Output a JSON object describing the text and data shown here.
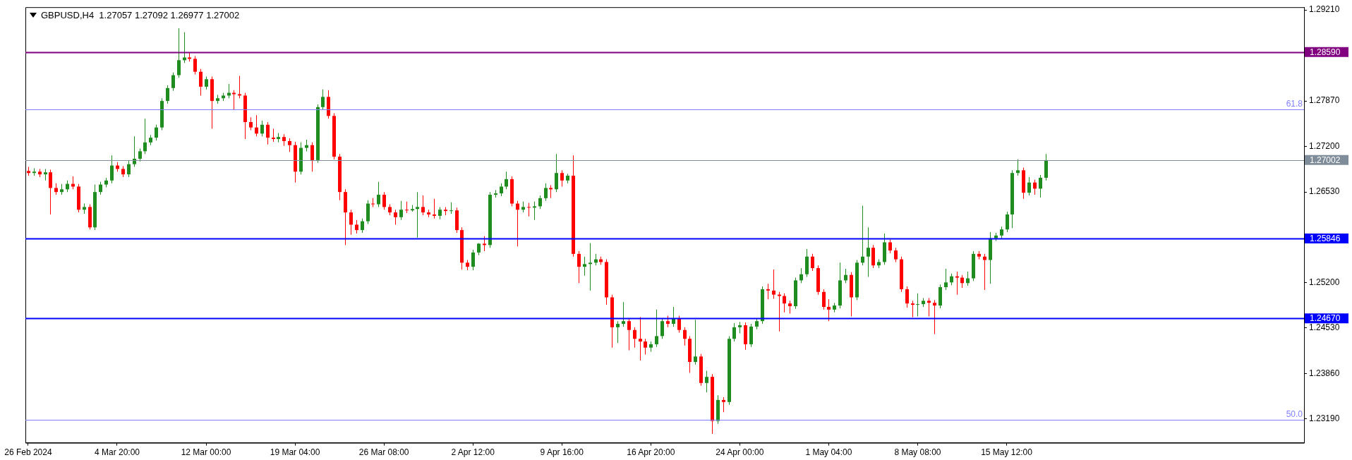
{
  "chart_data": {
    "type": "candlestick",
    "title": "GBPUSD,H4  1.27057 1.27092 1.26977 1.27002",
    "categories": [
      "26 Feb 2024",
      null,
      null,
      null,
      null,
      null,
      null,
      null,
      null,
      null,
      null,
      null,
      null,
      null,
      null,
      null,
      "4 Mar 20:00",
      null,
      null,
      null,
      null,
      null,
      null,
      null,
      null,
      null,
      null,
      null,
      null,
      null,
      null,
      null,
      "12 Mar 00:00",
      null,
      null,
      null,
      null,
      null,
      null,
      null,
      null,
      null,
      null,
      null,
      null,
      null,
      null,
      null,
      "19 Mar 04:00",
      null,
      null,
      null,
      null,
      null,
      null,
      null,
      null,
      null,
      null,
      null,
      null,
      null,
      null,
      null,
      "26 Mar 08:00",
      null,
      null,
      null,
      null,
      null,
      null,
      null,
      null,
      null,
      null,
      null,
      null,
      null,
      null,
      null,
      "2 Apr 12:00",
      null,
      null,
      null,
      null,
      null,
      null,
      null,
      null,
      null,
      null,
      null,
      null,
      null,
      null,
      null,
      "9 Apr 16:00",
      null,
      null,
      null,
      null,
      null,
      null,
      null,
      null,
      null,
      null,
      null,
      null,
      null,
      null,
      null,
      "16 Apr 20:00",
      null,
      null,
      null,
      null,
      null,
      null,
      null,
      null,
      null,
      null,
      null,
      null,
      null,
      null,
      null,
      "24 Apr 00:00",
      null,
      null,
      null,
      null,
      null,
      null,
      null,
      null,
      null,
      null,
      null,
      null,
      null,
      null,
      null,
      "1 May 04:00",
      null,
      null,
      null,
      null,
      null,
      null,
      null,
      null,
      null,
      null,
      null,
      null,
      null,
      null,
      null,
      "8 May 08:00",
      null,
      null,
      null,
      null,
      null,
      null,
      null,
      null,
      null,
      null,
      null,
      null,
      null,
      null,
      null,
      "15 May 12:00",
      null,
      null,
      null,
      null,
      null,
      null,
      null,
      null,
      null,
      null,
      null,
      null,
      null,
      null,
      null,
      null,
      null,
      null,
      null,
      null,
      null,
      null,
      null,
      null,
      null,
      null,
      null,
      null,
      null,
      null,
      null,
      null,
      null,
      null,
      null,
      null,
      null,
      null,
      null,
      null,
      null,
      null,
      null,
      null,
      null,
      null,
      null,
      null,
      null,
      null,
      null,
      null,
      null
    ],
    "ohlc": [
      [
        1.2684,
        1.269,
        1.2677,
        1.2681
      ],
      [
        1.2681,
        1.2688,
        1.2677,
        1.2683
      ],
      [
        1.2683,
        1.2687,
        1.2675,
        1.2679
      ],
      [
        1.2679,
        1.2687,
        1.267,
        1.2682
      ],
      [
        1.2682,
        1.2686,
        1.262,
        1.2659
      ],
      [
        1.2659,
        1.2666,
        1.2649,
        1.2653
      ],
      [
        1.2653,
        1.2665,
        1.2649,
        1.2657
      ],
      [
        1.2657,
        1.267,
        1.2653,
        1.2665
      ],
      [
        1.2665,
        1.2676,
        1.2657,
        1.2661
      ],
      [
        1.2661,
        1.2665,
        1.2623,
        1.2627
      ],
      [
        1.2627,
        1.2636,
        1.2621,
        1.2631
      ],
      [
        1.2631,
        1.2635,
        1.2598,
        1.2601
      ],
      [
        1.2601,
        1.2664,
        1.2597,
        1.2653
      ],
      [
        1.2653,
        1.2668,
        1.2649,
        1.2664
      ],
      [
        1.2664,
        1.2674,
        1.266,
        1.267
      ],
      [
        1.267,
        1.2707,
        1.2666,
        1.2692
      ],
      [
        1.2692,
        1.2697,
        1.2683,
        1.2687
      ],
      [
        1.2687,
        1.2691,
        1.2675,
        1.2679
      ],
      [
        1.2679,
        1.2699,
        1.2675,
        1.2694
      ],
      [
        1.2694,
        1.2735,
        1.269,
        1.2702
      ],
      [
        1.2702,
        1.2717,
        1.2698,
        1.2713
      ],
      [
        1.2713,
        1.2761,
        1.2709,
        1.2726
      ],
      [
        1.2726,
        1.2737,
        1.2722,
        1.2733
      ],
      [
        1.2733,
        1.2752,
        1.2729,
        1.2748
      ],
      [
        1.2748,
        1.2791,
        1.2744,
        1.2787
      ],
      [
        1.2787,
        1.281,
        1.2783,
        1.2806
      ],
      [
        1.2806,
        1.2829,
        1.2802,
        1.2825
      ],
      [
        1.2825,
        1.2894,
        1.2821,
        1.2847
      ],
      [
        1.2847,
        1.2888,
        1.2843,
        1.2851
      ],
      [
        1.2851,
        1.2858,
        1.2845,
        1.2849
      ],
      [
        1.2849,
        1.2853,
        1.2826,
        1.283
      ],
      [
        1.283,
        1.2834,
        1.2795,
        1.2808
      ],
      [
        1.2808,
        1.2823,
        1.2804,
        1.2819
      ],
      [
        1.2819,
        1.2823,
        1.2746,
        1.2787
      ],
      [
        1.2787,
        1.2796,
        1.2783,
        1.2791
      ],
      [
        1.2791,
        1.2799,
        1.2787,
        1.2795
      ],
      [
        1.2795,
        1.2812,
        1.2791,
        1.2799
      ],
      [
        1.2799,
        1.2803,
        1.2774,
        1.2797
      ],
      [
        1.2797,
        1.2824,
        1.2791,
        1.2795
      ],
      [
        1.2795,
        1.2799,
        1.2731,
        1.2756
      ],
      [
        1.2756,
        1.2763,
        1.2744,
        1.2748
      ],
      [
        1.2748,
        1.2766,
        1.2735,
        1.2739
      ],
      [
        1.2739,
        1.2758,
        1.2735,
        1.2752
      ],
      [
        1.2752,
        1.2756,
        1.2723,
        1.2733
      ],
      [
        1.2733,
        1.2746,
        1.2727,
        1.2731
      ],
      [
        1.2731,
        1.274,
        1.2726,
        1.2734
      ],
      [
        1.2734,
        1.2738,
        1.2721,
        1.2728
      ],
      [
        1.2728,
        1.2732,
        1.2712,
        1.2722
      ],
      [
        1.2722,
        1.2727,
        1.2667,
        1.2683
      ],
      [
        1.2683,
        1.2726,
        1.2679,
        1.2718
      ],
      [
        1.2718,
        1.273,
        1.2713,
        1.2722
      ],
      [
        1.2722,
        1.2726,
        1.2683,
        1.27
      ],
      [
        1.27,
        1.2782,
        1.2696,
        1.2778
      ],
      [
        1.2778,
        1.2804,
        1.2774,
        1.2793
      ],
      [
        1.2793,
        1.2803,
        1.2761,
        1.2765
      ],
      [
        1.2765,
        1.2769,
        1.2701,
        1.2705
      ],
      [
        1.2705,
        1.2709,
        1.2641,
        1.2653
      ],
      [
        1.2653,
        1.2657,
        1.2575,
        1.2623
      ],
      [
        1.2623,
        1.2627,
        1.259,
        1.2605
      ],
      [
        1.2605,
        1.2612,
        1.2592,
        1.2597
      ],
      [
        1.2597,
        1.2614,
        1.2593,
        1.261
      ],
      [
        1.261,
        1.2641,
        1.2606,
        1.2636
      ],
      [
        1.2636,
        1.2644,
        1.2631,
        1.2635
      ],
      [
        1.2635,
        1.2668,
        1.2631,
        1.2649
      ],
      [
        1.2649,
        1.2653,
        1.2627,
        1.2631
      ],
      [
        1.2631,
        1.2635,
        1.2619,
        1.2623
      ],
      [
        1.2623,
        1.2627,
        1.2605,
        1.2616
      ],
      [
        1.2616,
        1.264,
        1.2612,
        1.2627
      ],
      [
        1.2627,
        1.2639,
        1.2622,
        1.2626
      ],
      [
        1.2626,
        1.2634,
        1.2624,
        1.2628
      ],
      [
        1.2628,
        1.2653,
        1.2586,
        1.2631
      ],
      [
        1.2631,
        1.2648,
        1.2619,
        1.2623
      ],
      [
        1.2623,
        1.2627,
        1.2616,
        1.262
      ],
      [
        1.262,
        1.2643,
        1.2614,
        1.2618
      ],
      [
        1.2618,
        1.2631,
        1.2613,
        1.2627
      ],
      [
        1.2627,
        1.2631,
        1.2619,
        1.2625
      ],
      [
        1.2625,
        1.2638,
        1.2621,
        1.2626
      ],
      [
        1.2626,
        1.263,
        1.2593,
        1.2597
      ],
      [
        1.2597,
        1.2601,
        1.2539,
        1.2549
      ],
      [
        1.2549,
        1.2553,
        1.2538,
        1.2543
      ],
      [
        1.2543,
        1.2568,
        1.2538,
        1.2564
      ],
      [
        1.2564,
        1.2578,
        1.256,
        1.2577
      ],
      [
        1.2577,
        1.2588,
        1.2566,
        1.2575
      ],
      [
        1.2575,
        1.2653,
        1.2571,
        1.2649
      ],
      [
        1.2649,
        1.2656,
        1.2645,
        1.2651
      ],
      [
        1.2651,
        1.2666,
        1.2647,
        1.2661
      ],
      [
        1.2661,
        1.2683,
        1.2657,
        1.2672
      ],
      [
        1.2672,
        1.2676,
        1.2632,
        1.2636
      ],
      [
        1.2636,
        1.264,
        1.2573,
        1.2627
      ],
      [
        1.2627,
        1.2639,
        1.2623,
        1.2631
      ],
      [
        1.2631,
        1.2637,
        1.2617,
        1.263
      ],
      [
        1.263,
        1.2639,
        1.2612,
        1.2632
      ],
      [
        1.2632,
        1.2648,
        1.2628,
        1.2644
      ],
      [
        1.2644,
        1.2666,
        1.264,
        1.2659
      ],
      [
        1.2659,
        1.2663,
        1.2644,
        1.2657
      ],
      [
        1.2657,
        1.2709,
        1.2653,
        1.2681
      ],
      [
        1.2681,
        1.2685,
        1.2661,
        1.267
      ],
      [
        1.267,
        1.268,
        1.2666,
        1.2677
      ],
      [
        1.2677,
        1.2707,
        1.2558,
        1.2562
      ],
      [
        1.2562,
        1.2566,
        1.2519,
        1.2543
      ],
      [
        1.2543,
        1.2558,
        1.253,
        1.2547
      ],
      [
        1.2547,
        1.2578,
        1.2508,
        1.2549
      ],
      [
        1.2549,
        1.2562,
        1.2545,
        1.2554
      ],
      [
        1.2554,
        1.2558,
        1.2546,
        1.255
      ],
      [
        1.255,
        1.2554,
        1.2487,
        1.2498
      ],
      [
        1.2498,
        1.2502,
        1.2424,
        1.2454
      ],
      [
        1.2454,
        1.2463,
        1.2431,
        1.2459
      ],
      [
        1.2459,
        1.2491,
        1.2455,
        1.2463
      ],
      [
        1.2463,
        1.2467,
        1.242,
        1.245
      ],
      [
        1.245,
        1.2454,
        1.2424,
        1.2437
      ],
      [
        1.2437,
        1.2469,
        1.2405,
        1.2433
      ],
      [
        1.2433,
        1.2437,
        1.2414,
        1.2424
      ],
      [
        1.2424,
        1.2433,
        1.2418,
        1.2429
      ],
      [
        1.2429,
        1.248,
        1.2425,
        1.2441
      ],
      [
        1.2441,
        1.2467,
        1.2437,
        1.2463
      ],
      [
        1.2463,
        1.2471,
        1.2454,
        1.2459
      ],
      [
        1.2459,
        1.2484,
        1.2455,
        1.2467
      ],
      [
        1.2467,
        1.2471,
        1.2446,
        1.245
      ],
      [
        1.245,
        1.2454,
        1.2427,
        1.2437
      ],
      [
        1.2437,
        1.2441,
        1.2387,
        1.2403
      ],
      [
        1.2403,
        1.2465,
        1.2399,
        1.2411
      ],
      [
        1.2411,
        1.2415,
        1.2368,
        1.2372
      ],
      [
        1.2372,
        1.239,
        1.2358,
        1.2381
      ],
      [
        1.2381,
        1.2385,
        1.2297,
        1.2316
      ],
      [
        1.2316,
        1.2354,
        1.2312,
        1.2347
      ],
      [
        1.2347,
        1.2351,
        1.2329,
        1.2344
      ],
      [
        1.2344,
        1.2441,
        1.234,
        1.2437
      ],
      [
        1.2437,
        1.246,
        1.2433,
        1.2454
      ],
      [
        1.2454,
        1.2462,
        1.2445,
        1.2457
      ],
      [
        1.2457,
        1.2461,
        1.2421,
        1.2429
      ],
      [
        1.2429,
        1.2459,
        1.2425,
        1.2455
      ],
      [
        1.2455,
        1.2467,
        1.2451,
        1.2463
      ],
      [
        1.2463,
        1.2514,
        1.2459,
        1.251
      ],
      [
        1.251,
        1.2518,
        1.2495,
        1.2508
      ],
      [
        1.2508,
        1.2539,
        1.2496,
        1.2502
      ],
      [
        1.2502,
        1.2506,
        1.2448,
        1.25
      ],
      [
        1.25,
        1.2504,
        1.2476,
        1.2489
      ],
      [
        1.2489,
        1.2493,
        1.2474,
        1.2485
      ],
      [
        1.2485,
        1.2527,
        1.2481,
        1.2523
      ],
      [
        1.2523,
        1.2541,
        1.2519,
        1.2532
      ],
      [
        1.2532,
        1.2569,
        1.2528,
        1.2558
      ],
      [
        1.2558,
        1.2562,
        1.2537,
        1.2541
      ],
      [
        1.2541,
        1.2545,
        1.2502,
        1.2506
      ],
      [
        1.2506,
        1.251,
        1.248,
        1.2484
      ],
      [
        1.2484,
        1.2495,
        1.2463,
        1.248
      ],
      [
        1.248,
        1.249,
        1.2476,
        1.2486
      ],
      [
        1.2486,
        1.2549,
        1.2482,
        1.2523
      ],
      [
        1.2523,
        1.254,
        1.2519,
        1.2531
      ],
      [
        1.2531,
        1.2535,
        1.247,
        1.2498
      ],
      [
        1.2498,
        1.2553,
        1.2494,
        1.2549
      ],
      [
        1.2549,
        1.2633,
        1.2545,
        1.2558
      ],
      [
        1.2558,
        1.2601,
        1.2528,
        1.2571
      ],
      [
        1.2571,
        1.2575,
        1.2541,
        1.2545
      ],
      [
        1.2545,
        1.2554,
        1.2541,
        1.255
      ],
      [
        1.255,
        1.2592,
        1.2546,
        1.2579
      ],
      [
        1.2579,
        1.2583,
        1.2563,
        1.2567
      ],
      [
        1.2567,
        1.2571,
        1.255,
        1.2554
      ],
      [
        1.2554,
        1.2558,
        1.2506,
        1.251
      ],
      [
        1.251,
        1.2514,
        1.2483,
        1.2489
      ],
      [
        1.2489,
        1.2493,
        1.2469,
        1.2487
      ],
      [
        1.2487,
        1.2504,
        1.247,
        1.2488
      ],
      [
        1.2488,
        1.2497,
        1.2484,
        1.2493
      ],
      [
        1.2493,
        1.2497,
        1.247,
        1.249
      ],
      [
        1.249,
        1.2494,
        1.2444,
        1.2486
      ],
      [
        1.2486,
        1.2517,
        1.2482,
        1.2513
      ],
      [
        1.2513,
        1.254,
        1.2509,
        1.252
      ],
      [
        1.252,
        1.2533,
        1.2516,
        1.2529
      ],
      [
        1.2529,
        1.2536,
        1.2502,
        1.2527
      ],
      [
        1.2527,
        1.2531,
        1.2512,
        1.2519
      ],
      [
        1.2519,
        1.2536,
        1.2515,
        1.2526
      ],
      [
        1.2526,
        1.2566,
        1.2522,
        1.2562
      ],
      [
        1.2562,
        1.2566,
        1.2554,
        1.2558
      ],
      [
        1.2558,
        1.2562,
        1.2509,
        1.2553
      ],
      [
        1.2553,
        1.2594,
        1.2518,
        1.2585
      ],
      [
        1.2585,
        1.2593,
        1.2581,
        1.2589
      ],
      [
        1.2589,
        1.2602,
        1.2585,
        1.2598
      ],
      [
        1.2598,
        1.2624,
        1.2594,
        1.262
      ],
      [
        1.262,
        1.2685,
        1.26,
        1.2681
      ],
      [
        1.2681,
        1.2701,
        1.2677,
        1.2685
      ],
      [
        1.2685,
        1.2689,
        1.2643,
        1.2652
      ],
      [
        1.2652,
        1.2675,
        1.2648,
        1.2667
      ],
      [
        1.2667,
        1.2671,
        1.2649,
        1.2658
      ],
      [
        1.2658,
        1.2678,
        1.2645,
        1.2674
      ],
      [
        1.2674,
        1.2709,
        1.267,
        1.27
      ],
      null,
      null,
      null,
      null,
      null,
      null,
      null,
      null,
      null,
      null,
      null,
      null,
      null,
      null,
      null,
      null,
      null,
      null,
      null,
      null,
      null,
      null,
      null,
      null,
      null,
      null,
      null,
      null,
      null,
      null,
      null,
      null,
      null,
      null,
      null,
      null,
      null,
      null,
      null,
      null,
      null,
      null,
      null,
      null,
      null,
      null
    ],
    "ylim": [
      1.2284,
      1.2925
    ],
    "yticks": [
      {
        "value": 1.2921,
        "label": "1.29210"
      },
      {
        "value": 1.2787,
        "label": "1.27870"
      },
      {
        "value": 1.272,
        "label": "1.27200"
      },
      {
        "value": 1.2653,
        "label": "1.26530"
      },
      {
        "value": 1.252,
        "label": "1.25200"
      },
      {
        "value": 1.2453,
        "label": "1.24530"
      },
      {
        "value": 1.2386,
        "label": "1.23860"
      },
      {
        "value": 1.2319,
        "label": "1.23190"
      }
    ],
    "ref_lines": [
      {
        "axis": "y",
        "value": 1.2859,
        "label": "1.28590",
        "color": "#800080"
      },
      {
        "axis": "y",
        "value": 1.2775,
        "color": "#8080ff"
      },
      {
        "axis": "y",
        "value": 1.27002,
        "label": "1.27002",
        "color": "#7f8c99"
      },
      {
        "axis": "y",
        "value": 1.25846,
        "label": "1.25846",
        "color": "#0000ff"
      },
      {
        "axis": "y",
        "value": 1.2467,
        "label": "1.24670",
        "color": "#0000ff"
      },
      {
        "axis": "y",
        "value": 1.2318,
        "color": "#8080ff"
      }
    ],
    "annotations": [
      {
        "text": "61.8",
        "y": 1.2775
      },
      {
        "text": "50.0",
        "y": 1.2318
      }
    ]
  }
}
